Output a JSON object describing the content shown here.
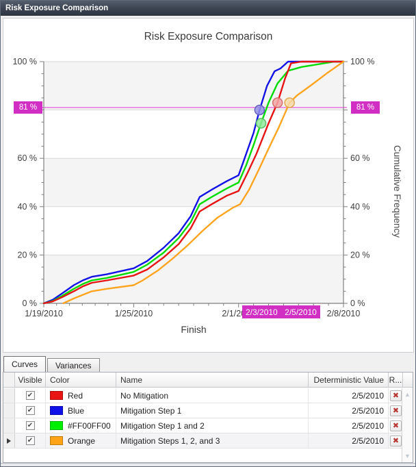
{
  "window": {
    "title": "Risk Exposure Comparison"
  },
  "chart": {
    "title": "Risk Exposure Comparison",
    "x_axis_title": "Finish",
    "y_axis_right_title": "Cumulative Frequency",
    "threshold_label": "81 %",
    "cursor_labels": [
      "2/3/2010",
      "2/5/2010"
    ]
  },
  "chart_data": {
    "type": "line",
    "title": "Risk Exposure Comparison",
    "xlabel": "Finish",
    "ylabel_right": "Cumulative Frequency",
    "x_unit": "days offset from 1/19/2010",
    "ylim": [
      0,
      100
    ],
    "x_ticks": [
      {
        "day": 0,
        "label": "1/19/2010"
      },
      {
        "day": 6,
        "label": "1/25/2010"
      },
      {
        "day": 13,
        "label": "2/1/2010"
      },
      {
        "day": 20,
        "label": "2/8/2010"
      }
    ],
    "y_ticks": [
      {
        "value": 0,
        "label": "0 %"
      },
      {
        "value": 20,
        "label": "20 %"
      },
      {
        "value": 40,
        "label": "40 %"
      },
      {
        "value": 60,
        "label": "60 %"
      },
      {
        "value": 100,
        "label": "100 %"
      }
    ],
    "threshold_pct": 81,
    "threshold_line_color": "#ea7ce0",
    "accent_magenta": "#d12ec4",
    "series": [
      {
        "name": "Mitigation Step 1",
        "color": "#1212e6",
        "points": [
          [
            0,
            0
          ],
          [
            0.6,
            1.5
          ],
          [
            1.2,
            4
          ],
          [
            2,
            7.5
          ],
          [
            2.6,
            9.5
          ],
          [
            3.2,
            11
          ],
          [
            4.2,
            12
          ],
          [
            6,
            14.5
          ],
          [
            6.9,
            17.5
          ],
          [
            8,
            23
          ],
          [
            9,
            29
          ],
          [
            9.8,
            36
          ],
          [
            10.4,
            44
          ],
          [
            11.2,
            47
          ],
          [
            12.2,
            50.5
          ],
          [
            13,
            53
          ],
          [
            13.4,
            60
          ],
          [
            14,
            70.5
          ],
          [
            14.4,
            80
          ],
          [
            14.9,
            90
          ],
          [
            15.4,
            96
          ],
          [
            15.8,
            97.2
          ],
          [
            16.3,
            100
          ],
          [
            20,
            100
          ]
        ]
      },
      {
        "name": "Mitigation Step 1 and 2",
        "color": "#00dc00",
        "points": [
          [
            0,
            0
          ],
          [
            0.6,
            1
          ],
          [
            1.2,
            3
          ],
          [
            2,
            6
          ],
          [
            2.6,
            8
          ],
          [
            3.2,
            9.5
          ],
          [
            4.2,
            10.5
          ],
          [
            6,
            13
          ],
          [
            6.9,
            16
          ],
          [
            8,
            21
          ],
          [
            9,
            27
          ],
          [
            9.8,
            33.5
          ],
          [
            10.4,
            41
          ],
          [
            11.2,
            44
          ],
          [
            12.2,
            47.5
          ],
          [
            13,
            50
          ],
          [
            13.5,
            57
          ],
          [
            14,
            65.5
          ],
          [
            14.5,
            74.5
          ],
          [
            15,
            83
          ],
          [
            15.6,
            91
          ],
          [
            16.3,
            96.2
          ],
          [
            17.2,
            97.8
          ],
          [
            19.4,
            100
          ],
          [
            20,
            100
          ]
        ]
      },
      {
        "name": "No Mitigation",
        "color": "#e61414",
        "points": [
          [
            0,
            0
          ],
          [
            0.6,
            0.8
          ],
          [
            1.2,
            2.5
          ],
          [
            2,
            5
          ],
          [
            2.6,
            7
          ],
          [
            3.2,
            8.5
          ],
          [
            4.2,
            9.5
          ],
          [
            6,
            11.5
          ],
          [
            6.9,
            14
          ],
          [
            8,
            19
          ],
          [
            9,
            24.5
          ],
          [
            9.8,
            31
          ],
          [
            10.4,
            38
          ],
          [
            11.2,
            41
          ],
          [
            12.2,
            44.5
          ],
          [
            13,
            46.5
          ],
          [
            13.6,
            54
          ],
          [
            14.2,
            62
          ],
          [
            15,
            74.5
          ],
          [
            15.6,
            83
          ],
          [
            16.1,
            93
          ],
          [
            16.5,
            99.3
          ],
          [
            17.2,
            100
          ],
          [
            20,
            100
          ]
        ]
      },
      {
        "name": "Mitigation Steps 1, 2, and 3",
        "color": "#ffa41e",
        "points": [
          [
            1.3,
            0
          ],
          [
            2,
            2
          ],
          [
            2.6,
            3.5
          ],
          [
            3.2,
            5
          ],
          [
            4.2,
            6
          ],
          [
            6,
            7.5
          ],
          [
            6.6,
            9.5
          ],
          [
            7.6,
            13.5
          ],
          [
            8.6,
            18.5
          ],
          [
            9.6,
            24
          ],
          [
            10.6,
            30
          ],
          [
            11.6,
            35.5
          ],
          [
            12.6,
            39.5
          ],
          [
            13.1,
            41
          ],
          [
            13.7,
            47
          ],
          [
            14.4,
            56
          ],
          [
            15,
            64
          ],
          [
            15.7,
            73
          ],
          [
            16.4,
            83
          ],
          [
            16.9,
            86
          ],
          [
            17.9,
            90.5
          ],
          [
            18.9,
            95.2
          ],
          [
            20,
            100
          ]
        ]
      }
    ],
    "markers": [
      {
        "series": "Mitigation Step 1",
        "day": 14.4,
        "pct": 80,
        "fill": "#9593e6",
        "stroke": "#625fc0"
      },
      {
        "series": "Mitigation Step 1 and 2",
        "day": 14.5,
        "pct": 74.5,
        "fill": "#92e79c",
        "stroke": "#5bbf66"
      },
      {
        "series": "No Mitigation",
        "day": 15.6,
        "pct": 83,
        "fill": "#f2a6a4",
        "stroke": "#d4716e"
      },
      {
        "series": "Mitigation Steps 1, 2, and 3",
        "day": 16.4,
        "pct": 83,
        "fill": "#f7d9a8",
        "stroke": "#e2a94f"
      }
    ]
  },
  "tabs": [
    "Curves",
    "Variances"
  ],
  "table": {
    "columns": [
      "Visible",
      "Color",
      "Name",
      "Deterministic Value",
      "R..."
    ],
    "check_glyph": "✔",
    "remove_glyph": "✖",
    "rows": [
      {
        "visible": true,
        "color_hex": "#e81414",
        "color_label": "Red",
        "name": "No Mitigation",
        "deterministic_value": "2/5/2010",
        "selected": false
      },
      {
        "visible": true,
        "color_hex": "#1010e8",
        "color_label": "Blue",
        "name": "Mitigation Step 1",
        "deterministic_value": "2/5/2010",
        "selected": false
      },
      {
        "visible": true,
        "color_hex": "#00ee00",
        "color_label": "#FF00FF00",
        "name": "Mitigation Step 1 and 2",
        "deterministic_value": "2/5/2010",
        "selected": false
      },
      {
        "visible": true,
        "color_hex": "#ffa418",
        "color_label": "Orange",
        "name": "Mitigation Steps 1, 2, and 3",
        "deterministic_value": "2/5/2010",
        "selected": true
      }
    ]
  }
}
